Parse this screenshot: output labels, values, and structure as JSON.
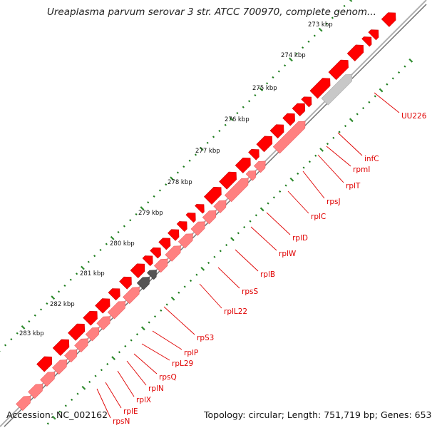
{
  "title": "Ureaplasma parvum serovar 3 str. ATCC 700970, complete genom...",
  "accession_text": "Accession: NC_002162",
  "topology_text": "Topology: circular; Length: 751,719 bp; Genes: 653",
  "kbp_labels": [
    "273 kbp",
    "274 kbp",
    "275 kbp",
    "276 kbp",
    "277 kbp",
    "278 kbp",
    "279 kbp",
    "280 kbp",
    "281 kbp",
    "282 kbp",
    "283 kbp"
  ],
  "gene_labels": [
    "UU226",
    "infC",
    "rpmI",
    "rplT",
    "rpsJ",
    "rplC",
    "rplD",
    "rplW",
    "rplB",
    "rpsS",
    "rplL22",
    "rpS3",
    "rplP",
    "rpL29",
    "rpsQ",
    "rplN",
    "rplX",
    "rplE",
    "rpsN"
  ],
  "colors": {
    "gene_fill": "#ff0000",
    "gene_highlight": "#ff8080",
    "selected_gene": "#555555",
    "hypothetical_gene": "#c8c8c8",
    "label_text": "#e00000",
    "tick_major": "#2e8b2e",
    "tick_minor": "#1a7a1a",
    "backbone": "#a0a0a0"
  }
}
